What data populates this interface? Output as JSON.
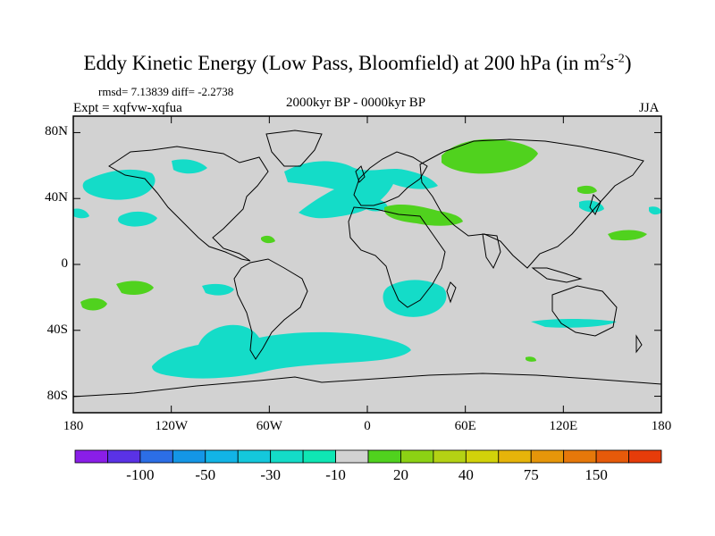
{
  "title": {
    "main": "Eddy Kinetic Energy (Low Pass, Bloomfield) at 200 hPa (in m",
    "sup1": "2",
    "mid": "s",
    "sup2": "-2",
    "end": ")"
  },
  "stats": {
    "text": "rmsd= 7.13839 diff= -2.2738"
  },
  "experiment": {
    "text": "Expt = xqfvw-xqfua"
  },
  "period": {
    "text": "2000kyr BP - 0000kyr BP"
  },
  "season": {
    "text": "JJA"
  },
  "lat_ticks": [
    "80N",
    "40N",
    "0",
    "40S",
    "80S"
  ],
  "lon_ticks": [
    "180",
    "120W",
    "60W",
    "0",
    "60E",
    "120E",
    "180"
  ],
  "colorbar": {
    "labels": [
      "-100",
      "-50",
      "-30",
      "-10",
      "20",
      "40",
      "75",
      "150"
    ],
    "colors": [
      "#8a1ee8",
      "#5a32e6",
      "#2c6ee6",
      "#1496e6",
      "#12b4e6",
      "#14c8dc",
      "#14dcc8",
      "#0fe6b4",
      "#d2d2d2",
      "#50d21e",
      "#8cd214",
      "#b4d214",
      "#d2d20a",
      "#e6b40a",
      "#e6960a",
      "#e6780a",
      "#e65a0a",
      "#e63c0a"
    ]
  },
  "colors": {
    "land": "#d2d2d2",
    "negative": "#14dcc8",
    "positive": "#50d21e",
    "positive_weak": "#8cd214",
    "coast": "#000000"
  }
}
